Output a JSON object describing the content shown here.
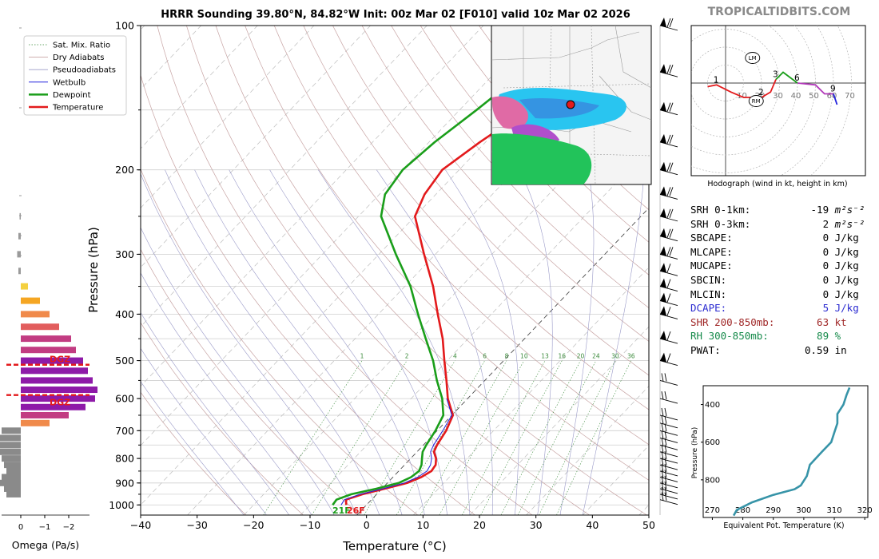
{
  "chart_data": [
    {
      "type": "line",
      "title": "HRRR Sounding 39.80°N, 84.82°W Init: 00z Mar 02 [F010] valid 10z Mar 02 2026",
      "xlabel": "Temperature (°C)",
      "ylabel": "Pressure (hPa)",
      "xlim": [
        -40,
        50
      ],
      "ylim": [
        1050,
        100
      ],
      "y_scale": "log",
      "x_ticks": [
        -40,
        -30,
        -20,
        -10,
        0,
        10,
        20,
        30,
        40,
        50
      ],
      "y_ticks": [
        100,
        200,
        300,
        400,
        500,
        600,
        700,
        800,
        900,
        1000
      ],
      "legend": [
        "Sat. Mix. Ratio",
        "Dry Adiabats",
        "Pseudoadiabats",
        "Wetbulb",
        "Dewpoint",
        "Temperature"
      ],
      "legend_position": "top-left",
      "mixing_ratio_labels": [
        "1",
        "2",
        "4",
        "6",
        "8",
        "10",
        "13",
        "16",
        "20",
        "24",
        "30",
        "36"
      ],
      "surface_labels": {
        "dewpoint": "21F",
        "temperature": "26F"
      },
      "series": [
        {
          "name": "Temperature",
          "color": "#e31a1c",
          "pressure": [
            1000,
            975,
            950,
            925,
            900,
            875,
            850,
            825,
            800,
            775,
            750,
            700,
            650,
            600,
            550,
            500,
            450,
            400,
            350,
            300,
            250,
            225,
            200,
            175,
            150,
            125,
            100
          ],
          "temperature": [
            -3.6,
            -4.5,
            -2.5,
            0.5,
            3.5,
            5.0,
            5.8,
            5.5,
            4.5,
            3.0,
            2.4,
            1.6,
            0.2,
            -3.5,
            -6.8,
            -10.5,
            -14.5,
            -19.5,
            -25,
            -32,
            -40,
            -42,
            -43,
            -41,
            -38,
            -33,
            -30
          ]
        },
        {
          "name": "Wetbulb",
          "color": "#2222dd",
          "pressure": [
            1000,
            975,
            950,
            925,
            900,
            875,
            850,
            825,
            800,
            775,
            750,
            700,
            650,
            600
          ],
          "temperature": [
            -4.5,
            -4.8,
            -2.9,
            0.2,
            3.0,
            4.4,
            5.0,
            4.6,
            3.7,
            2.4,
            1.8,
            1.0,
            0.0,
            -3.7
          ]
        },
        {
          "name": "Dewpoint",
          "color": "#1a9e1a",
          "pressure": [
            1000,
            975,
            950,
            925,
            900,
            875,
            850,
            825,
            800,
            775,
            750,
            700,
            650,
            600,
            550,
            500,
            450,
            400,
            350,
            300,
            250,
            225,
            200,
            175,
            150,
            125,
            100
          ],
          "temperature": [
            -6.0,
            -6.2,
            -4.5,
            -1.0,
            2.0,
            3.2,
            3.6,
            3.0,
            2.0,
            1.0,
            0.5,
            -0.3,
            -1.5,
            -4.5,
            -8.5,
            -12.5,
            -17.5,
            -23,
            -29,
            -37,
            -46,
            -49,
            -50,
            -49,
            -47,
            -45,
            -40
          ]
        }
      ]
    },
    {
      "type": "line",
      "title": "Hodograph (wind in kt, height in km)",
      "u": [
        -10,
        -5,
        3,
        10,
        20,
        25,
        28,
        32,
        40,
        50,
        55,
        60,
        62
      ],
      "v": [
        -2,
        -1,
        -5,
        -8,
        -8,
        -5,
        2,
        6,
        0,
        -1,
        -6,
        -6,
        -12
      ],
      "point_labels": [
        "1",
        "2",
        "3",
        "6",
        "9"
      ],
      "markers": [
        "LM",
        "RM"
      ],
      "ring_labels": [
        10,
        20,
        30,
        40,
        50,
        60,
        70
      ],
      "segment_colors": [
        "#e31a1c",
        "#1a9e1a",
        "#b23aba",
        "#2222dd"
      ]
    },
    {
      "type": "line",
      "xlabel": "Equivalent Pot. Temperature (K)",
      "ylabel": "Pressure (hPa)",
      "xlim": [
        267,
        321
      ],
      "ylim": [
        1000,
        300
      ],
      "x_ticks": [
        270,
        280,
        290,
        300,
        310,
        320
      ],
      "y_ticks": [
        400,
        600,
        800
      ],
      "color": "#3794a8",
      "theta_e": [
        277,
        278,
        283,
        290,
        297,
        299,
        301,
        302,
        306,
        309,
        310,
        311,
        311,
        313,
        314,
        315
      ],
      "pressure": [
        990,
        960,
        920,
        880,
        850,
        830,
        780,
        720,
        650,
        600,
        550,
        500,
        450,
        400,
        350,
        310
      ]
    },
    {
      "type": "bar",
      "xlabel": "Omega (Pa/s)",
      "x_ticks": [
        "0",
        "−1",
        "−2"
      ],
      "dgz_label": "DGZ",
      "dgz_pressure": [
        510,
        590
      ],
      "pressure": [
        250,
        275,
        300,
        325,
        350,
        375,
        400,
        425,
        450,
        475,
        500,
        525,
        550,
        575,
        600,
        625,
        650,
        675,
        700,
        725,
        750,
        775,
        800,
        825,
        850,
        875,
        900,
        925,
        950
      ],
      "omega": [
        0.05,
        0.1,
        0.15,
        0.1,
        -0.3,
        -0.8,
        -1.2,
        -1.6,
        -2.1,
        -2.3,
        -2.6,
        -2.8,
        -3.0,
        -3.2,
        -3.1,
        -2.7,
        -2.0,
        -1.2,
        0.8,
        1.0,
        1.0,
        0.9,
        0.8,
        0.7,
        0.6,
        0.8,
        1.1,
        0.7,
        0.6
      ]
    }
  ],
  "site": {
    "watermark": "TROPICALTIDBITS.COM"
  },
  "stats": [
    {
      "label": "SRH 0-1km:",
      "value": "-19",
      "unit": "m²s⁻²",
      "color": "#000000"
    },
    {
      "label": "SRH 0-3km:",
      "value": "2",
      "unit": "m²s⁻²",
      "color": "#000000"
    },
    {
      "label": "SBCAPE:",
      "value": "0",
      "unit": "J/kg",
      "color": "#000000"
    },
    {
      "label": "MLCAPE:",
      "value": "0",
      "unit": "J/kg",
      "color": "#000000"
    },
    {
      "label": "MUCAPE:",
      "value": "0",
      "unit": "J/kg",
      "color": "#000000"
    },
    {
      "label": "SBCIN:",
      "value": "0",
      "unit": "J/kg",
      "color": "#000000"
    },
    {
      "label": "MLCIN:",
      "value": "0",
      "unit": "J/kg",
      "color": "#000000"
    },
    {
      "label": "DCAPE:",
      "value": "5",
      "unit": "J/kg",
      "color": "#2a2ad0"
    },
    {
      "label": "SHR 200-850mb:",
      "value": "63",
      "unit": "kt",
      "color": "#a02828"
    },
    {
      "label": "RH 300-850mb:",
      "value": "89",
      "unit": "%",
      "color": "#158a4a"
    },
    {
      "label": "PWAT:",
      "value": "0.59",
      "unit": "in",
      "color": "#000000"
    }
  ]
}
